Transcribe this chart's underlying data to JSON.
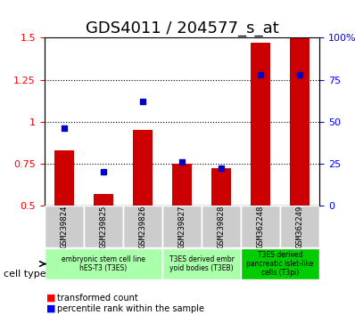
{
  "title": "GDS4011 / 204577_s_at",
  "samples": [
    "GSM239824",
    "GSM239825",
    "GSM239826",
    "GSM239827",
    "GSM239828",
    "GSM362248",
    "GSM362249"
  ],
  "transformed_count": [
    0.83,
    0.57,
    0.95,
    0.75,
    0.72,
    1.47,
    1.5
  ],
  "percentile_rank": [
    0.46,
    0.2,
    0.62,
    0.26,
    0.22,
    0.78,
    0.78
  ],
  "ylim_left": [
    0.5,
    1.5
  ],
  "ylim_right": [
    0,
    100
  ],
  "yticks_left": [
    0.5,
    0.75,
    1.0,
    1.25,
    1.5
  ],
  "yticks_right": [
    0,
    25,
    50,
    75,
    100
  ],
  "ytick_labels_left": [
    "0.5",
    "0.75",
    "1",
    "1.25",
    "1.5"
  ],
  "ytick_labels_right": [
    "0",
    "25",
    "50",
    "75",
    "100%"
  ],
  "hlines": [
    0.75,
    1.0,
    1.25
  ],
  "bar_color": "#cc0000",
  "dot_color": "#0000cc",
  "bar_width": 0.5,
  "cell_type_groups": [
    {
      "label": "embryonic stem cell line\nhES-T3 (T3ES)",
      "start": 0,
      "end": 2,
      "color": "#aaffaa"
    },
    {
      "label": "T3ES derived embr\nyoid bodies (T3EB)",
      "start": 3,
      "end": 4,
      "color": "#aaffaa"
    },
    {
      "label": "T3ES derived\npancreatic islet-like\ncells (T3pi)",
      "start": 5,
      "end": 6,
      "color": "#00cc00"
    }
  ],
  "cell_type_label": "cell type",
  "legend_red": "transformed count",
  "legend_blue": "percentile rank within the sample",
  "bg_color_samples": "#cccccc",
  "grid_color": "#888888",
  "title_fontsize": 13,
  "axis_fontsize": 9,
  "tick_fontsize": 8
}
